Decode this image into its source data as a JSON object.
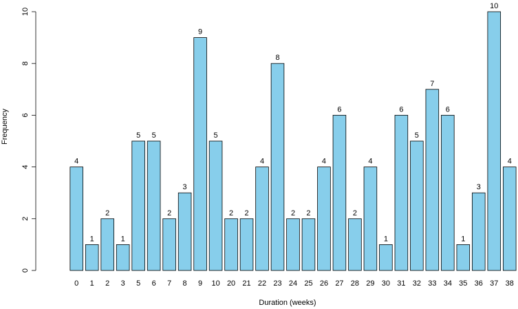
{
  "chart_data": {
    "type": "bar",
    "title": "",
    "xlabel": "Duration (weeks)",
    "ylabel": "Frequency",
    "ylim": [
      0,
      10
    ],
    "yticks": [
      0,
      2,
      4,
      6,
      8,
      10
    ],
    "grid": false,
    "legend": "none",
    "bar_color": "#87CEEB",
    "bar_border_color": "#000000",
    "categories": [
      "0",
      "1",
      "2",
      "3",
      "5",
      "6",
      "7",
      "8",
      "9",
      "10",
      "20",
      "21",
      "22",
      "23",
      "24",
      "25",
      "26",
      "27",
      "28",
      "29",
      "30",
      "31",
      "32",
      "33",
      "34",
      "35",
      "36",
      "37",
      "38"
    ],
    "values": [
      4,
      1,
      2,
      1,
      5,
      5,
      2,
      3,
      9,
      5,
      2,
      2,
      4,
      8,
      2,
      2,
      4,
      6,
      2,
      4,
      1,
      6,
      5,
      7,
      6,
      1,
      3,
      10,
      4
    ]
  }
}
